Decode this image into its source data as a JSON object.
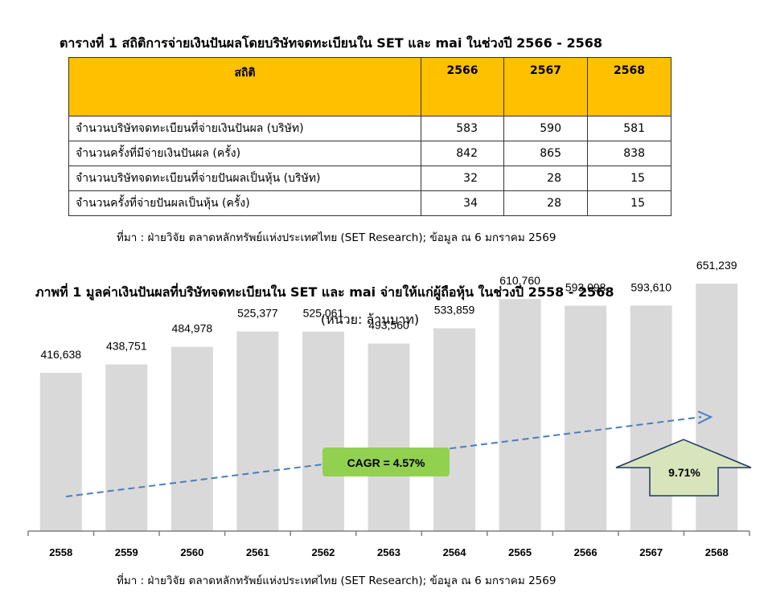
{
  "table": {
    "title": "ตารางที่ 1 สถิติการจ่ายเงินปันผลโดยบริษัทจดทะเบียนใน SET และ mai ในช่วงปี 2566 - 2568",
    "headers": [
      "สถิติ",
      "2566",
      "2567",
      "2568"
    ],
    "rows": [
      [
        "จำนวนบริษัทจดทะเบียนที่จ่ายเงินปันผล (บริษัท)",
        "583",
        "590",
        "581"
      ],
      [
        "จำนวนครั้งที่มีจ่ายเงินปันผล (ครั้ง)",
        "842",
        "865",
        "838"
      ],
      [
        "จำนวนบริษัทจดทะเบียนที่จ่ายปันผลเป็นหุ้น (บริษัท)",
        "32",
        "28",
        "15"
      ],
      [
        "จำนวนครั้งที่จ่ายปันผลเป็นหุ้น (ครั้ง)",
        "34",
        "28",
        "15"
      ]
    ],
    "source": "ที่มา : ฝ่ายวิจัย ตลาดหลักทรัพย์แห่งประเทศไทย (SET Research); ข้อมูล ณ 6 มกราคม 2569",
    "header_color": "#ffc000"
  },
  "chart_data": {
    "type": "bar",
    "title": "ภาพที่ 1 มูลค่าเงินปันผลที่บริษัทจดทะเบียนใน SET และ mai จ่ายให้แก่ผู้ถือหุ้น ในช่วงปี 2558 - 2568",
    "subtitle": "(หน่วย:  ล้านบาท)",
    "categories": [
      "2558",
      "2559",
      "2560",
      "2561",
      "2562",
      "2563",
      "2564",
      "2565",
      "2566",
      "2567",
      "2568"
    ],
    "values": [
      416638,
      438751,
      484978,
      525377,
      525061,
      493560,
      533859,
      610760,
      593098,
      593610,
      651239
    ],
    "value_labels": [
      "416,638",
      "438,751",
      "484,978",
      "525,377",
      "525,061",
      "493,560",
      "533,859",
      "610,760",
      "593,098",
      "593,610",
      "651,239"
    ],
    "ylim": [
      0,
      700000
    ],
    "bar_color": "#d9d9d9",
    "trend_color": "#4a7ebb",
    "cagr_label": "CAGR = 4.57%",
    "cagr_color": "#92d050",
    "growth_label": "9.71%",
    "growth_color": "#d8e4bc",
    "grid": false,
    "source": "ที่มา : ฝ่ายวิจัย ตลาดหลักทรัพย์แห่งประเทศไทย (SET Research); ข้อมูล ณ 6 มกราคม 2569"
  }
}
